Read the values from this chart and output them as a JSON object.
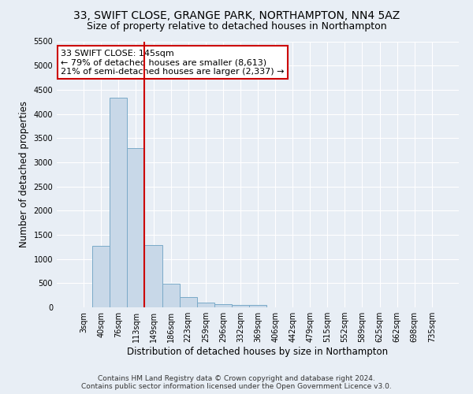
{
  "title_line1": "33, SWIFT CLOSE, GRANGE PARK, NORTHAMPTON, NN4 5AZ",
  "title_line2": "Size of property relative to detached houses in Northampton",
  "xlabel": "Distribution of detached houses by size in Northampton",
  "ylabel": "Number of detached properties",
  "bar_labels": [
    "3sqm",
    "40sqm",
    "76sqm",
    "113sqm",
    "149sqm",
    "186sqm",
    "223sqm",
    "259sqm",
    "296sqm",
    "332sqm",
    "369sqm",
    "406sqm",
    "442sqm",
    "479sqm",
    "515sqm",
    "552sqm",
    "589sqm",
    "625sqm",
    "662sqm",
    "698sqm",
    "735sqm"
  ],
  "bar_heights": [
    0,
    1270,
    4330,
    3300,
    1280,
    490,
    220,
    95,
    70,
    55,
    50,
    0,
    0,
    0,
    0,
    0,
    0,
    0,
    0,
    0,
    0
  ],
  "bar_color": "#c8d8e8",
  "bar_edge_color": "#7aaac8",
  "background_color": "#e8eef5",
  "grid_color": "#ffffff",
  "marker_index": 4,
  "marker_color": "#cc0000",
  "annotation_title": "33 SWIFT CLOSE: 145sqm",
  "annotation_line1": "← 79% of detached houses are smaller (8,613)",
  "annotation_line2": "21% of semi-detached houses are larger (2,337) →",
  "annotation_box_color": "#ffffff",
  "annotation_box_edge": "#cc0000",
  "ylim_max": 5500,
  "yticks": [
    0,
    500,
    1000,
    1500,
    2000,
    2500,
    3000,
    3500,
    4000,
    4500,
    5000,
    5500
  ],
  "footer_line1": "Contains HM Land Registry data © Crown copyright and database right 2024.",
  "footer_line2": "Contains public sector information licensed under the Open Government Licence v3.0.",
  "title_fontsize": 10,
  "subtitle_fontsize": 9,
  "axis_label_fontsize": 8.5,
  "tick_fontsize": 7,
  "annotation_fontsize": 8,
  "footer_fontsize": 6.5
}
